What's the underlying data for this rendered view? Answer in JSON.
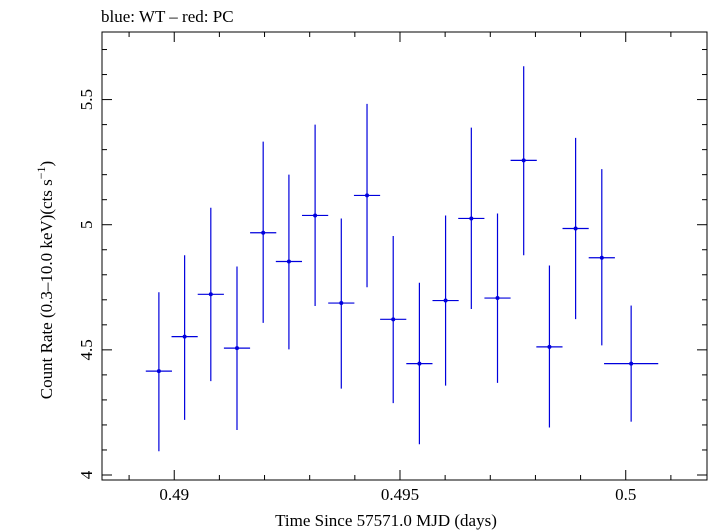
{
  "chart_data": {
    "type": "scatter",
    "title": "blue: WT – red: PC",
    "xlabel": "Time Since 57571.0 MJD (days)",
    "ylabel_main": "Count Rate (0.3–10.0 keV)(cts s",
    "ylabel_sup": "−1",
    "ylabel_end": ")",
    "xlim": [
      0.4884,
      0.5018
    ],
    "ylim": [
      3.98,
      5.77
    ],
    "x_ticks_major": [
      0.49,
      0.495,
      0.5
    ],
    "x_tick_labels": [
      "0.49",
      "0.495",
      "0.5"
    ],
    "x_ticks_minor_step": 0.001,
    "y_ticks_major": [
      4,
      4.5,
      5,
      5.5
    ],
    "y_tick_labels": [
      "4",
      "4.5",
      "5",
      "5.5"
    ],
    "y_ticks_minor_step": 0.1,
    "grid": false,
    "series": [
      {
        "name": "WT",
        "color": "#0000dd",
        "points": [
          {
            "x": 0.48966,
            "xerr": 0.00029,
            "y": 4.415,
            "ylo": 4.095,
            "yhi": 4.73
          },
          {
            "x": 0.49023,
            "xerr": 0.00029,
            "y": 4.553,
            "ylo": 4.22,
            "yhi": 4.878
          },
          {
            "x": 0.49081,
            "xerr": 0.00029,
            "y": 4.722,
            "ylo": 4.375,
            "yhi": 5.068
          },
          {
            "x": 0.49139,
            "xerr": 0.00029,
            "y": 4.507,
            "ylo": 4.18,
            "yhi": 4.833
          },
          {
            "x": 0.49197,
            "xerr": 0.00029,
            "y": 4.968,
            "ylo": 4.608,
            "yhi": 5.332
          },
          {
            "x": 0.49254,
            "xerr": 0.00029,
            "y": 4.853,
            "ylo": 4.502,
            "yhi": 5.2
          },
          {
            "x": 0.49312,
            "xerr": 0.00029,
            "y": 5.037,
            "ylo": 4.675,
            "yhi": 5.4
          },
          {
            "x": 0.4937,
            "xerr": 0.00029,
            "y": 4.687,
            "ylo": 4.345,
            "yhi": 5.025
          },
          {
            "x": 0.49427,
            "xerr": 0.00029,
            "y": 5.117,
            "ylo": 4.75,
            "yhi": 5.483
          },
          {
            "x": 0.49485,
            "xerr": 0.00029,
            "y": 4.622,
            "ylo": 4.287,
            "yhi": 4.955
          },
          {
            "x": 0.49543,
            "xerr": 0.00029,
            "y": 4.445,
            "ylo": 4.123,
            "yhi": 4.768
          },
          {
            "x": 0.49601,
            "xerr": 0.00029,
            "y": 4.697,
            "ylo": 4.357,
            "yhi": 5.037
          },
          {
            "x": 0.49658,
            "xerr": 0.00029,
            "y": 5.025,
            "ylo": 4.663,
            "yhi": 5.388
          },
          {
            "x": 0.49716,
            "xerr": 0.00029,
            "y": 4.707,
            "ylo": 4.368,
            "yhi": 5.045
          },
          {
            "x": 0.49774,
            "xerr": 0.00029,
            "y": 5.257,
            "ylo": 4.878,
            "yhi": 5.633
          },
          {
            "x": 0.49831,
            "xerr": 0.00029,
            "y": 4.512,
            "ylo": 4.19,
            "yhi": 4.837
          },
          {
            "x": 0.49889,
            "xerr": 0.00029,
            "y": 4.985,
            "ylo": 4.623,
            "yhi": 5.347
          },
          {
            "x": 0.49947,
            "xerr": 0.00029,
            "y": 4.868,
            "ylo": 4.518,
            "yhi": 5.222
          },
          {
            "x": 0.50012,
            "xerr": 0.0006,
            "y": 4.445,
            "ylo": 4.213,
            "yhi": 4.677
          }
        ]
      }
    ]
  }
}
